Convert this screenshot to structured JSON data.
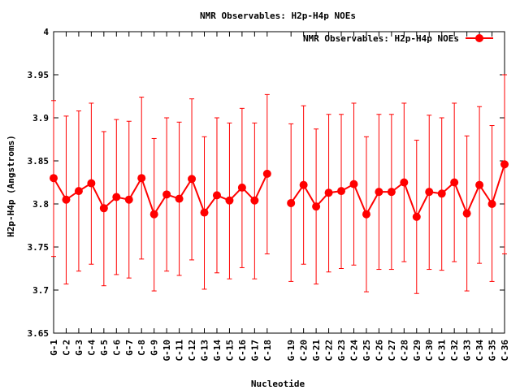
{
  "chart_data": {
    "type": "line",
    "title": "NMR Observables: H2p-H4p NOEs",
    "xlabel": "Nucleotide",
    "ylabel": "H2p-H4p (Angstroms)",
    "ylim": [
      3.65,
      4.0
    ],
    "yticks": [
      "3.65",
      "3.7",
      "3.75",
      "3.8",
      "3.85",
      "3.9",
      "3.95",
      "4"
    ],
    "legend": {
      "label": "NMR Observables: H2p-H4p NOEs",
      "placement": "top-right"
    },
    "grid": false,
    "series_color": "#ff0000",
    "categories": [
      "G-1",
      "C-2",
      "G-3",
      "C-4",
      "G-5",
      "C-6",
      "G-7",
      "C-8",
      "G-9",
      "G-10",
      "C-11",
      "C-12",
      "G-13",
      "G-14",
      "C-15",
      "C-16",
      "G-17",
      "C-18",
      "G-19",
      "C-20",
      "G-21",
      "C-22",
      "G-23",
      "C-24",
      "G-25",
      "C-26",
      "C-27",
      "C-28",
      "G-29",
      "C-30",
      "C-31",
      "C-32",
      "G-33",
      "C-34",
      "G-35",
      "C-36"
    ],
    "x_positions": [
      1,
      2,
      3,
      4,
      5,
      6,
      7,
      8,
      9,
      10,
      11,
      12,
      13,
      14,
      15,
      16,
      17,
      18,
      19.9,
      20.9,
      21.9,
      22.9,
      23.9,
      24.9,
      25.9,
      26.9,
      27.9,
      28.9,
      29.9,
      30.9,
      31.9,
      32.9,
      33.9,
      34.9,
      35.9,
      36.9
    ],
    "series": [
      {
        "values": [
          3.83,
          3.805,
          3.815,
          3.824,
          3.795,
          3.808,
          3.805,
          3.83,
          3.788,
          3.811,
          3.806,
          3.829,
          3.79,
          3.81,
          3.804,
          3.819,
          3.804,
          3.835,
          3.801,
          3.822,
          3.797,
          3.813,
          3.815,
          3.823,
          3.788,
          3.814,
          3.814,
          3.825,
          3.785,
          3.814,
          3.812,
          3.825,
          3.789,
          3.822,
          3.8,
          3.846
        ],
        "err_low": [
          3.739,
          3.707,
          3.722,
          3.73,
          3.705,
          3.718,
          3.714,
          3.736,
          3.699,
          3.722,
          3.717,
          3.735,
          3.701,
          3.72,
          3.713,
          3.726,
          3.713,
          3.742,
          3.71,
          3.73,
          3.707,
          3.721,
          3.725,
          3.729,
          3.698,
          3.724,
          3.724,
          3.733,
          3.696,
          3.724,
          3.723,
          3.733,
          3.699,
          3.731,
          3.71,
          3.742
        ],
        "err_high": [
          3.92,
          3.902,
          3.908,
          3.917,
          3.884,
          3.898,
          3.896,
          3.924,
          3.876,
          3.9,
          3.895,
          3.922,
          3.878,
          3.9,
          3.894,
          3.911,
          3.894,
          3.927,
          3.893,
          3.914,
          3.887,
          3.904,
          3.904,
          3.917,
          3.878,
          3.904,
          3.904,
          3.917,
          3.874,
          3.903,
          3.9,
          3.917,
          3.879,
          3.913,
          3.891,
          3.95
        ],
        "segments": [
          [
            0,
            17
          ],
          [
            18,
            35
          ]
        ]
      }
    ]
  }
}
